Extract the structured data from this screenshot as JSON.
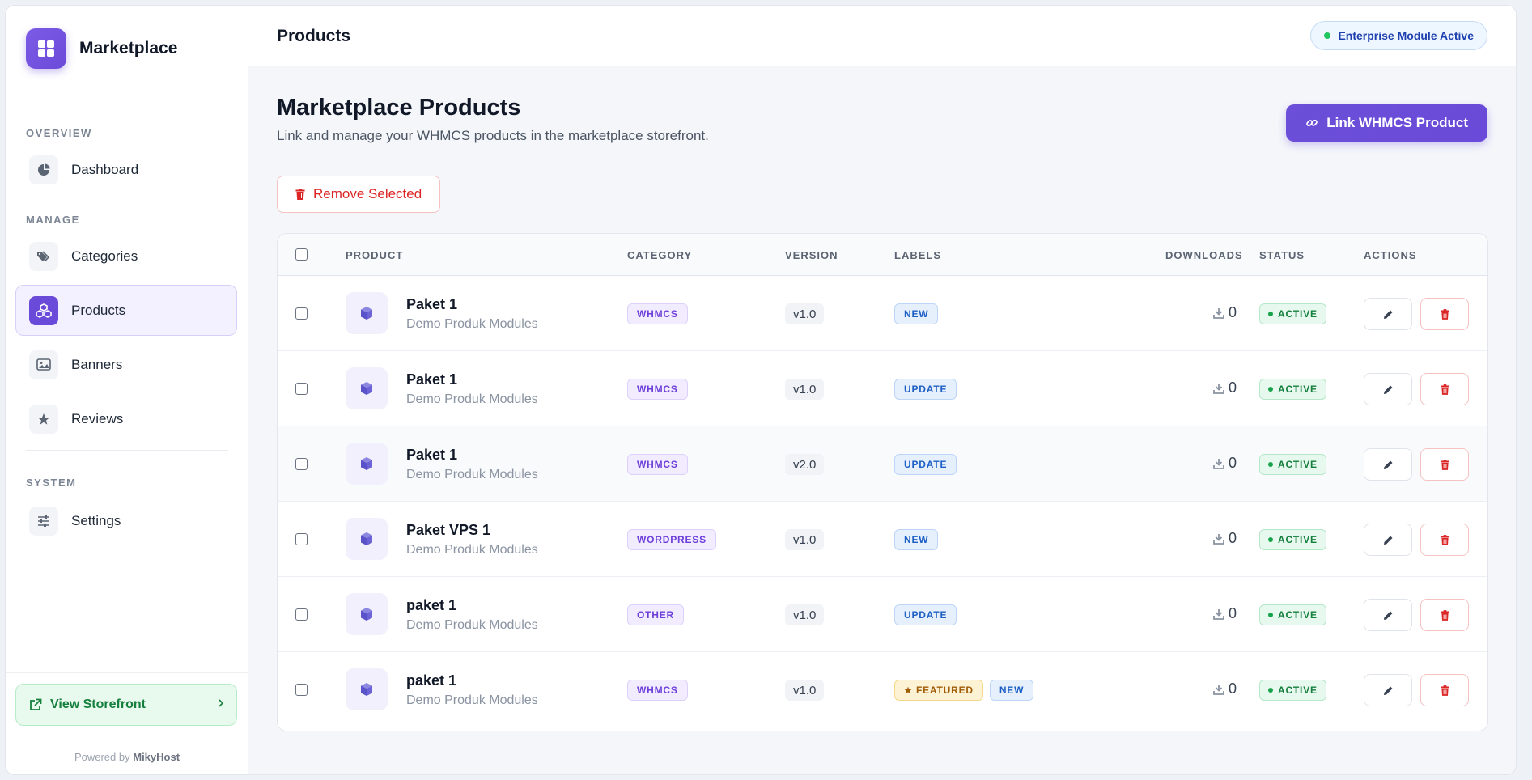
{
  "sidebar": {
    "brand": "Marketplace",
    "sections": {
      "overview": "OVERVIEW",
      "manage": "MANAGE",
      "system": "SYSTEM"
    },
    "items": [
      {
        "label": "Dashboard",
        "icon": "pie-chart-icon"
      },
      {
        "label": "Categories",
        "icon": "tags-icon"
      },
      {
        "label": "Products",
        "icon": "boxes-icon",
        "active": true
      },
      {
        "label": "Banners",
        "icon": "image-icon"
      },
      {
        "label": "Reviews",
        "icon": "star-icon"
      },
      {
        "label": "Settings",
        "icon": "sliders-icon"
      }
    ],
    "storefront_label": "View Storefront",
    "powered_prefix": "Powered by",
    "powered_brand": "MikyHost"
  },
  "topbar": {
    "title": "Products",
    "badge": "Enterprise Module Active"
  },
  "page": {
    "title": "Marketplace Products",
    "subtitle": "Link and manage your WHMCS products in the marketplace storefront.",
    "link_button": "Link WHMCS Product",
    "remove_button": "Remove Selected"
  },
  "table": {
    "headers": {
      "product": "PRODUCT",
      "category": "CATEGORY",
      "version": "VERSION",
      "labels": "LABELS",
      "downloads": "DOWNLOADS",
      "status": "STATUS",
      "actions": "ACTIONS"
    },
    "rows": [
      {
        "name": "Paket 1",
        "desc": "Demo Produk Modules",
        "category": "WHMCS",
        "version": "v1.0",
        "labels": [
          "NEW"
        ],
        "downloads": "0",
        "status": "ACTIVE"
      },
      {
        "name": "Paket 1",
        "desc": "Demo Produk Modules",
        "category": "WHMCS",
        "version": "v1.0",
        "labels": [
          "UPDATE"
        ],
        "downloads": "0",
        "status": "ACTIVE"
      },
      {
        "name": "Paket 1",
        "desc": "Demo Produk Modules",
        "category": "WHMCS",
        "version": "v2.0",
        "labels": [
          "UPDATE"
        ],
        "downloads": "0",
        "status": "ACTIVE"
      },
      {
        "name": "Paket VPS 1",
        "desc": "Demo Produk Modules",
        "category": "WORDPRESS",
        "version": "v1.0",
        "labels": [
          "NEW"
        ],
        "downloads": "0",
        "status": "ACTIVE"
      },
      {
        "name": "paket 1",
        "desc": "Demo Produk Modules",
        "category": "OTHER",
        "version": "v1.0",
        "labels": [
          "UPDATE"
        ],
        "downloads": "0",
        "status": "ACTIVE"
      },
      {
        "name": "paket 1",
        "desc": "Demo Produk Modules",
        "category": "WHMCS",
        "version": "v1.0",
        "labels": [
          "FEATURED",
          "NEW"
        ],
        "downloads": "0",
        "status": "ACTIVE"
      }
    ]
  },
  "colors": {
    "accent": "#6a4ad8",
    "success": "#15803d",
    "danger": "#dc2626",
    "info": "#1d5fc4"
  }
}
